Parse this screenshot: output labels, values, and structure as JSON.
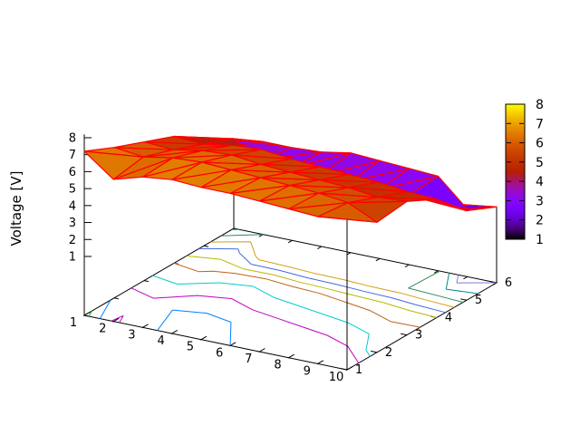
{
  "chart_data": {
    "type": "surface3d_pm3d_with_base_contours",
    "title": "",
    "zlabel": "Voltage [V]",
    "background": "#ffffff",
    "axis_color": "#000000",
    "mesh_color": "#ff0000",
    "x_ticks": [
      "1",
      "2",
      "3",
      "4",
      "5",
      "6",
      "7",
      "8",
      "9",
      "10"
    ],
    "y_ticks": [
      "1",
      "2",
      "3",
      "4",
      "5",
      "6"
    ],
    "z_ticks": [
      "1",
      "2",
      "3",
      "4",
      "5",
      "6",
      "7",
      "8"
    ],
    "x_range": [
      1,
      10
    ],
    "y_range": [
      1,
      6
    ],
    "z_tick_range": [
      1,
      8
    ],
    "x": [
      1,
      2,
      3,
      4,
      5,
      6,
      7,
      8,
      9,
      10
    ],
    "y": [
      1,
      2,
      3,
      4,
      5,
      6
    ],
    "z_grid": [
      [
        7.2,
        5.9,
        6.4,
        6.6,
        6.5,
        6.5,
        6.4,
        6.3,
        6.2,
        6.5
      ],
      [
        6.4,
        6.2,
        6.5,
        6.6,
        6.5,
        6.4,
        6.3,
        6.2,
        6.0,
        5.2
      ],
      [
        5.7,
        5.6,
        5.9,
        6.0,
        5.8,
        5.7,
        5.6,
        5.5,
        5.3,
        5.4
      ],
      [
        5.0,
        4.9,
        5.2,
        5.3,
        5.1,
        5.0,
        4.9,
        4.8,
        4.6,
        4.5
      ],
      [
        3.8,
        4.2,
        3.3,
        3.2,
        3.1,
        3.1,
        3.0,
        3.0,
        2.9,
        2.8
      ],
      [
        2.4,
        3.0,
        3.0,
        3.1,
        3.4,
        3.3,
        3.2,
        3.1,
        1.5,
        2.0
      ]
    ],
    "palette": "gnuplot rgbformulae 7,5,15 (black-blue-violet-red-orange-yellow)",
    "colorbar": {
      "min": 1,
      "max": 8,
      "tick_labels": [
        "1",
        "2",
        "3",
        "4",
        "5",
        "6",
        "7",
        "8"
      ]
    },
    "contours": {
      "levels": [
        7,
        6.5,
        6,
        5.5,
        5,
        4.5,
        4,
        3.5,
        3,
        2.5,
        2,
        1.5
      ],
      "colors": [
        "#00b400",
        "#0080ff",
        "#c000c0",
        "#00cdcd",
        "#c0601a",
        "#b8b800",
        "#4169e1",
        "#d4a017",
        "#2e8b57",
        "#008b8b",
        "#9370db",
        "#8b0000"
      ]
    }
  }
}
